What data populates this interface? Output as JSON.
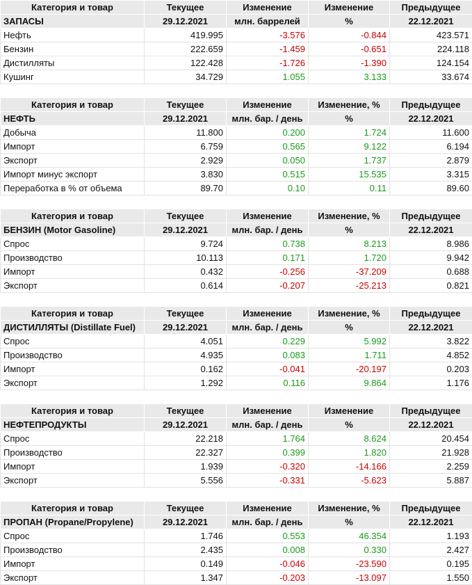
{
  "tables": [
    {
      "headers": [
        "Категория и товар",
        "Текущее",
        "Изменение",
        "Изменение",
        "Предыдущее"
      ],
      "subheaders": [
        "ЗАПАСЫ",
        "29.12.2021",
        "млн. баррелей",
        "%",
        "22.12.2021"
      ],
      "rows": [
        [
          "Нефть",
          "419.995",
          "-3.576",
          "-0.844",
          "423.571"
        ],
        [
          "Бензин",
          "222.659",
          "-1.459",
          "-0.651",
          "224.118"
        ],
        [
          "Дистилляты",
          "122.428",
          "-1.726",
          "-1.390",
          "124.154"
        ],
        [
          "Кушинг",
          "34.729",
          "1.055",
          "3.133",
          "33.674"
        ]
      ]
    },
    {
      "headers": [
        "Категория и товар",
        "Текущее",
        "Изменение",
        "Изменение, %",
        "Предыдущее"
      ],
      "subheaders": [
        "НЕФТЬ",
        "29.12.2021",
        "млн. бар. / день",
        "%",
        "22.12.2021"
      ],
      "rows": [
        [
          "Добыча",
          "11.800",
          "0.200",
          "1.724",
          "11.600"
        ],
        [
          "Импорт",
          "6.759",
          "0.565",
          "9.122",
          "6.194"
        ],
        [
          "Экспорт",
          "2.929",
          "0.050",
          "1.737",
          "2.879"
        ],
        [
          "Импорт минус экспорт",
          "3.830",
          "0.515",
          "15.535",
          "3.315"
        ],
        [
          "Переработка в % от объема",
          "89.70",
          "0.10",
          "0.11",
          "89.60"
        ]
      ]
    },
    {
      "headers": [
        "Категория и товар",
        "Текущее",
        "Изменение",
        "Изменение, %",
        "Предыдущее"
      ],
      "subheaders": [
        "БЕНЗИН (Motor Gasoline)",
        "29.12.2021",
        "млн. бар. / день",
        "%",
        "22.12.2021"
      ],
      "rows": [
        [
          "Спрос",
          "9.724",
          "0.738",
          "8.213",
          "8.986"
        ],
        [
          "Производство",
          "10.113",
          "0.171",
          "1.720",
          "9.942"
        ],
        [
          "Импорт",
          "0.432",
          "-0.256",
          "-37.209",
          "0.688"
        ],
        [
          "Экспорт",
          "0.614",
          "-0.207",
          "-25.213",
          "0.821"
        ]
      ]
    },
    {
      "headers": [
        "Категория и товар",
        "Текущее",
        "Изменение",
        "Изменение, %",
        "Предыдущее"
      ],
      "subheaders": [
        "ДИСТИЛЛЯТЫ (Distillate Fuel)",
        "29.12.2021",
        "млн. бар. / день",
        "%",
        "22.12.2021"
      ],
      "rows": [
        [
          "Спрос",
          "4.051",
          "0.229",
          "5.992",
          "3.822"
        ],
        [
          "Производство",
          "4.935",
          "0.083",
          "1.711",
          "4.852"
        ],
        [
          "Импорт",
          "0.162",
          "-0.041",
          "-20.197",
          "0.203"
        ],
        [
          "Экспорт",
          "1.292",
          "0.116",
          "9.864",
          "1.176"
        ]
      ]
    },
    {
      "headers": [
        "Категория и товар",
        "Текущее",
        "Изменение",
        "Изменение",
        "Предыдущее"
      ],
      "subheaders": [
        "НЕФТЕПРОДУКТЫ",
        "29.12.2021",
        "млн. бар. / день",
        "%",
        "22.12.2021"
      ],
      "rows": [
        [
          "Спрос",
          "22.218",
          "1.764",
          "8.624",
          "20.454"
        ],
        [
          "Производство",
          "22.327",
          "0.399",
          "1.820",
          "21.928"
        ],
        [
          "Импорт",
          "1.939",
          "-0.320",
          "-14.166",
          "2.259"
        ],
        [
          "Экспорт",
          "5.556",
          "-0.331",
          "-5.623",
          "5.887"
        ]
      ]
    },
    {
      "headers": [
        "Категория и товар",
        "Текущее",
        "Изменение",
        "Изменение, %",
        "Предыдущее"
      ],
      "subheaders": [
        "ПРОПАН (Propane/Propylene)",
        "29.12.2021",
        "млн. бар. / день",
        "%",
        "22.12.2021"
      ],
      "rows": [
        [
          "Спрос",
          "1.746",
          "0.553",
          "46.354",
          "1.193"
        ],
        [
          "Производство",
          "2.435",
          "0.008",
          "0.330",
          "2.427"
        ],
        [
          "Импорт",
          "0.149",
          "-0.046",
          "-23.590",
          "0.195"
        ],
        [
          "Экспорт",
          "1.347",
          "-0.203",
          "-13.097",
          "1.550"
        ]
      ]
    }
  ]
}
